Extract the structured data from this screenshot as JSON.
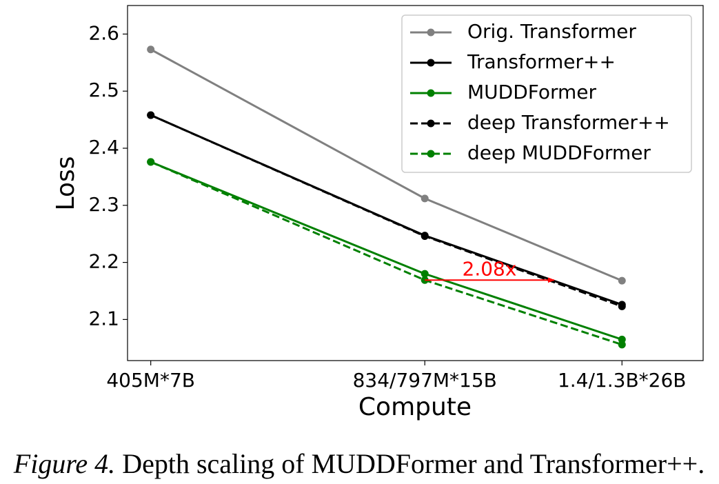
{
  "chart_data": {
    "type": "line",
    "x_label": "Compute",
    "y_label": "Loss",
    "x": [
      2.835e+18,
      1.251e+19,
      3.64e+19
    ],
    "xscale": "log",
    "xlim": [
      2.5e+18,
      5.65e+19
    ],
    "xticks": [
      {
        "value": 2.835e+18,
        "label": "405M*7B"
      },
      {
        "value": 1.251e+19,
        "label": "834/797M*15B"
      },
      {
        "value": 3.64e+19,
        "label": "1.4/1.3B*26B"
      }
    ],
    "ylim": [
      2.028,
      2.65
    ],
    "yticks": [
      2.1,
      2.2,
      2.3,
      2.4,
      2.5,
      2.6
    ],
    "grid": false,
    "legend": "upper right",
    "series": [
      {
        "name": "Orig. Transformer",
        "color": "#808080",
        "linestyle": "solid",
        "values": [
          2.573,
          2.312,
          2.168
        ]
      },
      {
        "name": "Transformer++",
        "color": "#000000",
        "linestyle": "solid",
        "values": [
          2.458,
          2.247,
          2.126
        ]
      },
      {
        "name": "MUDDFormer",
        "color": "#008000",
        "linestyle": "solid",
        "values": [
          2.376,
          2.18,
          2.065
        ]
      },
      {
        "name": "deep Transformer++",
        "color": "#000000",
        "linestyle": "dashed",
        "values": [
          2.458,
          2.246,
          2.123
        ]
      },
      {
        "name": "deep MUDDFormer",
        "color": "#008000",
        "linestyle": "dashed",
        "values": [
          2.376,
          2.169,
          2.056
        ]
      }
    ],
    "annotations": [
      {
        "text": "2.08x",
        "color": "#ff0000",
        "x_start": 1.251e+19,
        "x_end": 2.52e+19,
        "y": 2.169
      }
    ]
  },
  "caption": {
    "label": "Figure 4.",
    "text": "Depth scaling of MUDDFormer and Transformer++."
  }
}
